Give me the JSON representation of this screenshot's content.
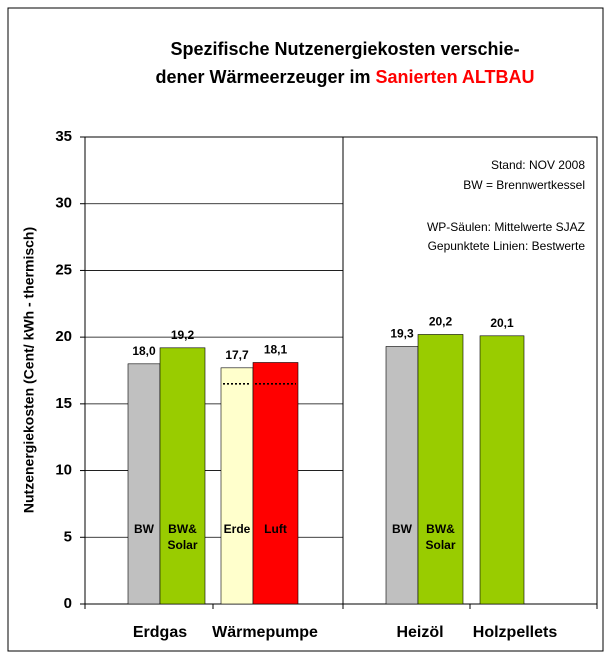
{
  "chart_data": {
    "type": "bar",
    "title_lines": [
      "Spezifische Nutzenergiekosten verschie-",
      "dener Wärmeerzeuger im "
    ],
    "title_highlight": "Sanierten ALTBAU",
    "title_highlight_color": "#ff0000",
    "ylabel": "Nutzenergiekosten  (Cent/ kWh - thermisch)",
    "ylim": [
      0,
      35
    ],
    "yticks": [
      0,
      5,
      10,
      15,
      20,
      25,
      30,
      35
    ],
    "categories": [
      "Erdgas",
      "Wärmepumpe",
      "Heizöl",
      "Holzpellets"
    ],
    "bars": [
      {
        "category": 0,
        "label_lines": [
          "BW"
        ],
        "value": 18.0,
        "value_label": "18,0",
        "color": "#c0c0c0"
      },
      {
        "category": 0,
        "label_lines": [
          "BW&",
          "Solar"
        ],
        "value": 19.2,
        "value_label": "19,2",
        "color": "#99cc00"
      },
      {
        "category": 1,
        "label_lines": [
          "Erde"
        ],
        "value": 17.7,
        "value_label": "17,7",
        "color": "#ffffcc",
        "best": 16.5
      },
      {
        "category": 1,
        "label_lines": [
          "Luft"
        ],
        "value": 18.1,
        "value_label": "18,1",
        "color": "#ff0000",
        "best": 16.5
      },
      {
        "category": 2,
        "label_lines": [
          "BW"
        ],
        "value": 19.3,
        "value_label": "19,3",
        "color": "#c0c0c0"
      },
      {
        "category": 2,
        "label_lines": [
          "BW&",
          "Solar"
        ],
        "value": 20.2,
        "value_label": "20,2",
        "color": "#99cc00"
      },
      {
        "category": 3,
        "label_lines": [],
        "value": 20.1,
        "value_label": "20,1",
        "color": "#99cc00"
      }
    ],
    "annotations": [
      "Stand: NOV 2008",
      "BW = Brennwertkessel",
      "WP-Säulen: Mittelwerte SJAZ",
      "Gepunktete Linien: Bestwerte"
    ],
    "grid": true
  }
}
